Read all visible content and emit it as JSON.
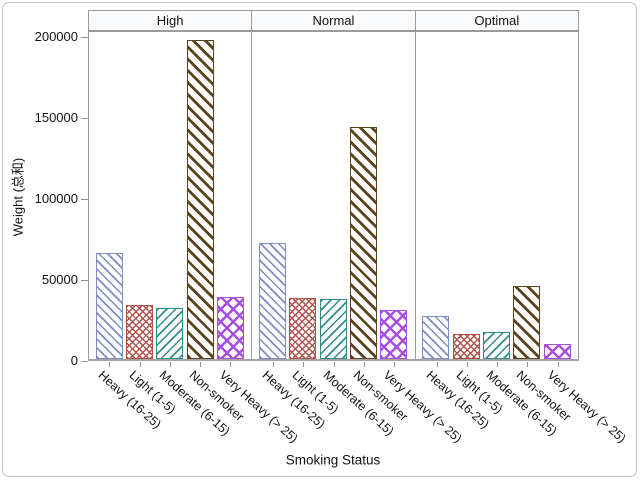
{
  "figure_type": "paneled-bar-chart",
  "chart_data": {
    "type": "bar",
    "title": "",
    "xlabel": "Smoking Status",
    "ylabel": "Weight (总和)",
    "ylim": [
      0,
      200000
    ],
    "y_tick_values": [
      0,
      50000,
      100000,
      150000,
      200000
    ],
    "grid": false,
    "legend": "none",
    "panels": [
      "High",
      "Normal",
      "Optimal"
    ],
    "categories": [
      "Heavy (16-25)",
      "Light (1-5)",
      "Moderate (6-15)",
      "Non-smoker",
      "Very Heavy (> 25)"
    ],
    "series": [
      {
        "name": "High",
        "values": [
          65500,
          33500,
          31500,
          197000,
          38000
        ]
      },
      {
        "name": "Normal",
        "values": [
          71500,
          37500,
          37000,
          143000,
          30500
        ]
      },
      {
        "name": "Optimal",
        "values": [
          26500,
          15500,
          16500,
          45000,
          9000
        ]
      }
    ],
    "bar_styles": [
      {
        "category": "Heavy (16-25)",
        "color": "#7d8bc7",
        "pattern": "diagonal-down"
      },
      {
        "category": "Light (1-5)",
        "color": "#b1514a",
        "pattern": "crosshatch-dense"
      },
      {
        "category": "Moderate (6-15)",
        "color": "#2f8f88",
        "pattern": "diagonal-up"
      },
      {
        "category": "Non-smoker",
        "color": "#5d431d",
        "pattern": "diagonal-down-thick"
      },
      {
        "category": "Very Heavy (> 25)",
        "color": "#a74fe3",
        "pattern": "crosshatch-large"
      }
    ],
    "colors": {
      "panel_border": "#9a9a9a",
      "axis_line": "#a3a3a3",
      "tick_mark": "#8f8f8f",
      "header_bg": "#fafbfc",
      "frame_border": "#c3c3c3",
      "text": "#121212"
    }
  }
}
